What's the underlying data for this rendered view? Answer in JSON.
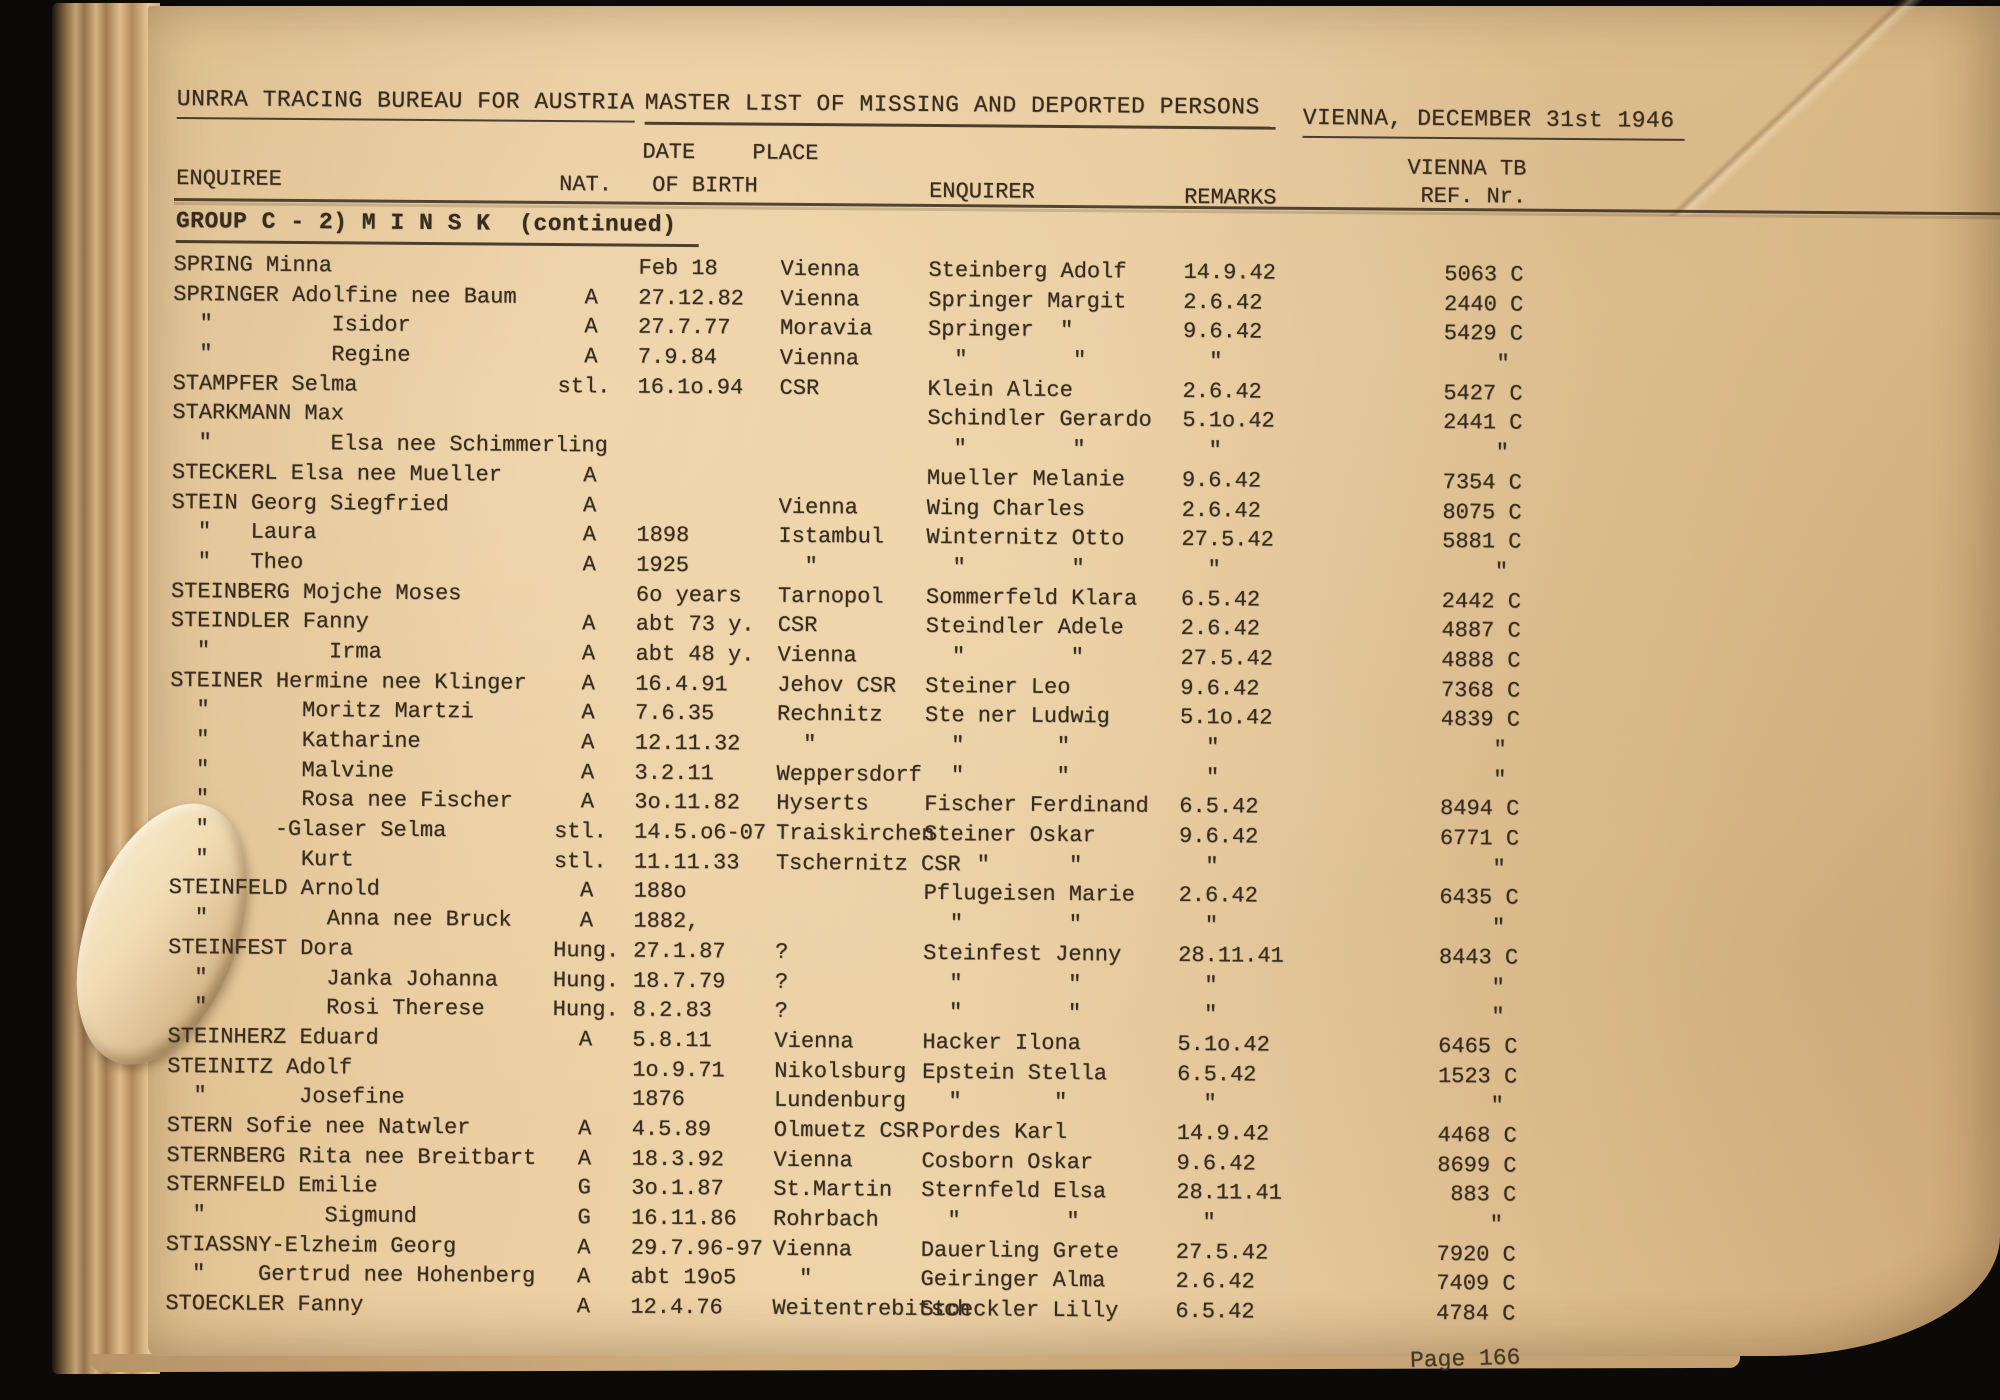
{
  "document": {
    "header": {
      "bureau": "UNRRA TRACING BUREAU FOR AUSTRIA",
      "title": "MASTER LIST OF MISSING AND DEPORTED PERSONS",
      "date_line": "VIENNA, DECEMBER 31st 1946"
    },
    "columns": {
      "enquiree": "ENQUIREE",
      "nat": "NAT.",
      "date_top": "DATE",
      "place_top": "PLACE",
      "of_birth": "OF BIRTH",
      "enquirer": "ENQUIRER",
      "remarks": "REMARKS",
      "ref_line1": "VIENNA TB",
      "ref_line2": "REF. Nr."
    },
    "group_heading": "GROUP C - 2) M I N S K  (continued)",
    "page_label": "Page 166",
    "rows": [
      [
        "SPRING Minna",
        "",
        "Feb 18",
        "Vienna",
        "Steinberg Adolf",
        "14.9.42",
        "5063 C"
      ],
      [
        "SPRINGER Adolfine nee Baum",
        "  A",
        "27.12.82",
        "Vienna",
        "Springer Margit",
        "2.6.42",
        "2440 C"
      ],
      [
        "  \"         Isidor",
        "  A",
        "27.7.77",
        "Moravia",
        "Springer  \"",
        "9.6.42",
        "5429 C"
      ],
      [
        "  \"         Regine",
        "  A",
        "7.9.84",
        "Vienna",
        "  \"        \"",
        "  \"",
        "\" "
      ],
      [
        "STAMPFER Selma",
        "stl.",
        "16.1o.94",
        "CSR",
        "Klein Alice",
        "2.6.42",
        "5427 C"
      ],
      [
        "STARKMANN Max",
        "",
        "",
        "",
        "Schindler Gerardo",
        "5.1o.42",
        "2441 C"
      ],
      [
        "  \"         Elsa nee Schimmerling",
        "",
        "",
        "",
        "  \"        \"",
        "  \"",
        "\" "
      ],
      [
        "STECKERL Elsa nee Mueller",
        "  A",
        "",
        "",
        "Mueller Melanie",
        "9.6.42",
        "7354 C"
      ],
      [
        "STEIN Georg Siegfried",
        "  A",
        "",
        "Vienna",
        "Wing Charles",
        "2.6.42",
        "8075 C"
      ],
      [
        "  \"   Laura",
        "  A",
        "1898",
        "Istambul",
        "Winternitz Otto",
        "27.5.42",
        "5881 C"
      ],
      [
        "  \"   Theo",
        "  A",
        "1925",
        "  \"",
        "  \"        \"",
        "  \"",
        "\" "
      ],
      [
        "STEINBERG Mojche Moses",
        "",
        "6o years",
        "Tarnopol",
        "Sommerfeld Klara",
        "6.5.42",
        "2442 C"
      ],
      [
        "STEINDLER Fanny",
        "  A",
        "abt 73 y.",
        "CSR",
        "Steindler Adele",
        "2.6.42",
        "4887 C"
      ],
      [
        "  \"         Irma",
        "  A",
        "abt 48 y.",
        "Vienna",
        "  \"        \"",
        "27.5.42",
        "4888 C"
      ],
      [
        "STEINER Hermine nee Klinger",
        "  A",
        "16.4.91",
        "Jehov CSR",
        "Steiner Leo",
        "9.6.42",
        "7368 C"
      ],
      [
        "  \"       Moritz Martzi",
        "  A",
        "7.6.35",
        "Rechnitz",
        "Ste ner Ludwig",
        "5.1o.42",
        "4839 C"
      ],
      [
        "  \"       Katharine",
        "  A",
        "12.11.32",
        "  \"",
        "  \"       \"",
        "  \"",
        "\" "
      ],
      [
        "  \"       Malvine",
        "  A",
        "3.2.11",
        "Weppersdorf",
        "  \"       \"",
        "  \"",
        "\" "
      ],
      [
        "  \"       Rosa nee Fischer",
        "  A",
        "3o.11.82",
        "Hyserts",
        "Fischer Ferdinand",
        "6.5.42",
        "8494 C"
      ],
      [
        "  \"     -Glaser Selma",
        "stl.",
        "14.5.o6-07",
        "Traiskirchen",
        "Steiner Oskar",
        "9.6.42",
        "6771 C"
      ],
      [
        "  \"       Kurt",
        "stl.",
        "11.11.33",
        "Tschernitz CSR",
        "    \"      \"",
        "  \"",
        "\" "
      ],
      [
        "STEINFELD Arnold",
        "  A",
        "188o",
        "",
        "Pflugeisen Marie",
        "2.6.42",
        "6435 C"
      ],
      [
        "  \"         Anna nee Bruck",
        "  A",
        "1882,",
        "",
        "  \"        \"",
        "  \"",
        "\" "
      ],
      [
        "STEINFEST Dora",
        "Hung.",
        "27.1.87",
        "?",
        "Steinfest Jenny",
        "28.11.41",
        "8443 C"
      ],
      [
        "  \"         Janka Johanna",
        "Hung.",
        "18.7.79",
        "?",
        "  \"        \"",
        "  \"",
        "\" "
      ],
      [
        "  \"         Rosi Therese",
        "Hung.",
        "8.2.83",
        "?",
        "  \"        \"",
        "  \"",
        "\" "
      ],
      [
        "STEINHERZ Eduard",
        "  A",
        "5.8.11",
        "Vienna",
        "Hacker Ilona",
        "5.1o.42",
        "6465 C"
      ],
      [
        "STEINITZ Adolf",
        "",
        "1o.9.71",
        "Nikolsburg",
        "Epstein Stella",
        "6.5.42",
        "1523 C"
      ],
      [
        "  \"       Josefine",
        "",
        "1876",
        "Lundenburg",
        "  \"       \"",
        "  \"",
        "\" "
      ],
      [
        "STERN Sofie nee Natwler",
        "  A",
        "4.5.89",
        "Olmuetz CSR",
        "Pordes Karl",
        "14.9.42",
        "4468 C"
      ],
      [
        "STERNBERG Rita nee Breitbart",
        "  A",
        "18.3.92",
        "Vienna",
        "Cosborn Oskar",
        "9.6.42",
        "8699 C"
      ],
      [
        "STERNFELD Emilie",
        "  G",
        "3o.1.87",
        "St.Martin",
        "Sternfeld Elsa",
        "28.11.41",
        "883 C"
      ],
      [
        "  \"         Sigmund",
        "  G",
        "16.11.86",
        "Rohrbach",
        "  \"        \"",
        "  \"",
        "\" "
      ],
      [
        "STIASSNY-Elzheim Georg",
        "  A",
        "29.7.96-97",
        "Vienna",
        "Dauerling Grete",
        "27.5.42",
        "7920 C"
      ],
      [
        "  \"    Gertrud nee Hohenberg",
        "  A",
        "abt 19o5",
        "  \"",
        "Geiringer Alma",
        "2.6.42",
        "7409 C"
      ],
      [
        "STOECKLER Fanny",
        "  A",
        "12.4.76",
        "Weitentrebitsch",
        "Stoeckler Lilly",
        "6.5.42",
        "4784 C"
      ]
    ]
  }
}
